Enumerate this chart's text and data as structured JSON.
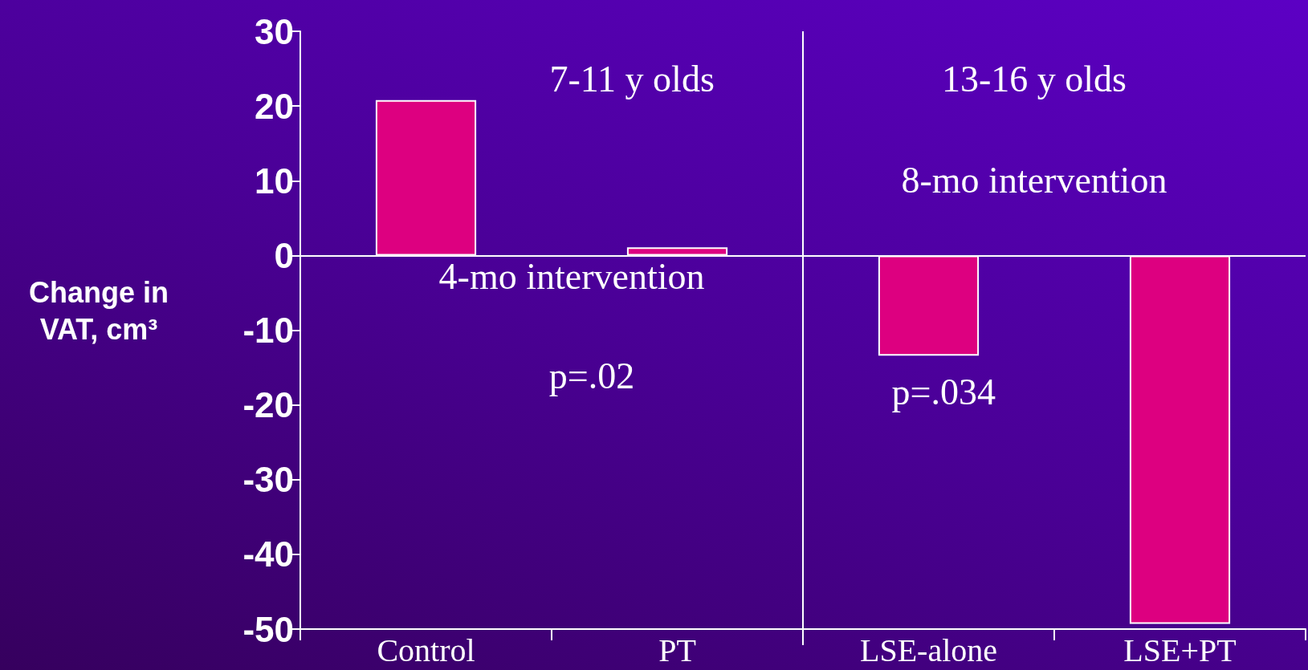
{
  "chart_data": {
    "type": "bar",
    "ylabel": "Change in VAT, cm³",
    "categories": [
      "Control",
      "PT",
      "LSE-alone",
      "LSE+PT"
    ],
    "values": [
      20.8,
      1.1,
      -13.4,
      -49.3
    ],
    "color": "#dd0080",
    "ylim": [
      -50,
      30
    ],
    "yticks": [
      -50,
      -40,
      -30,
      -20,
      -10,
      0,
      10,
      20,
      30
    ],
    "grid": false,
    "ref_lines": [
      {
        "axis": "y",
        "value": 0,
        "color": "#ffffff"
      }
    ],
    "annotations": [
      "7-11 y olds",
      "13-16 y olds",
      "8-mo intervention",
      "4-mo intervention",
      "p=.02",
      "p=.034"
    ]
  }
}
